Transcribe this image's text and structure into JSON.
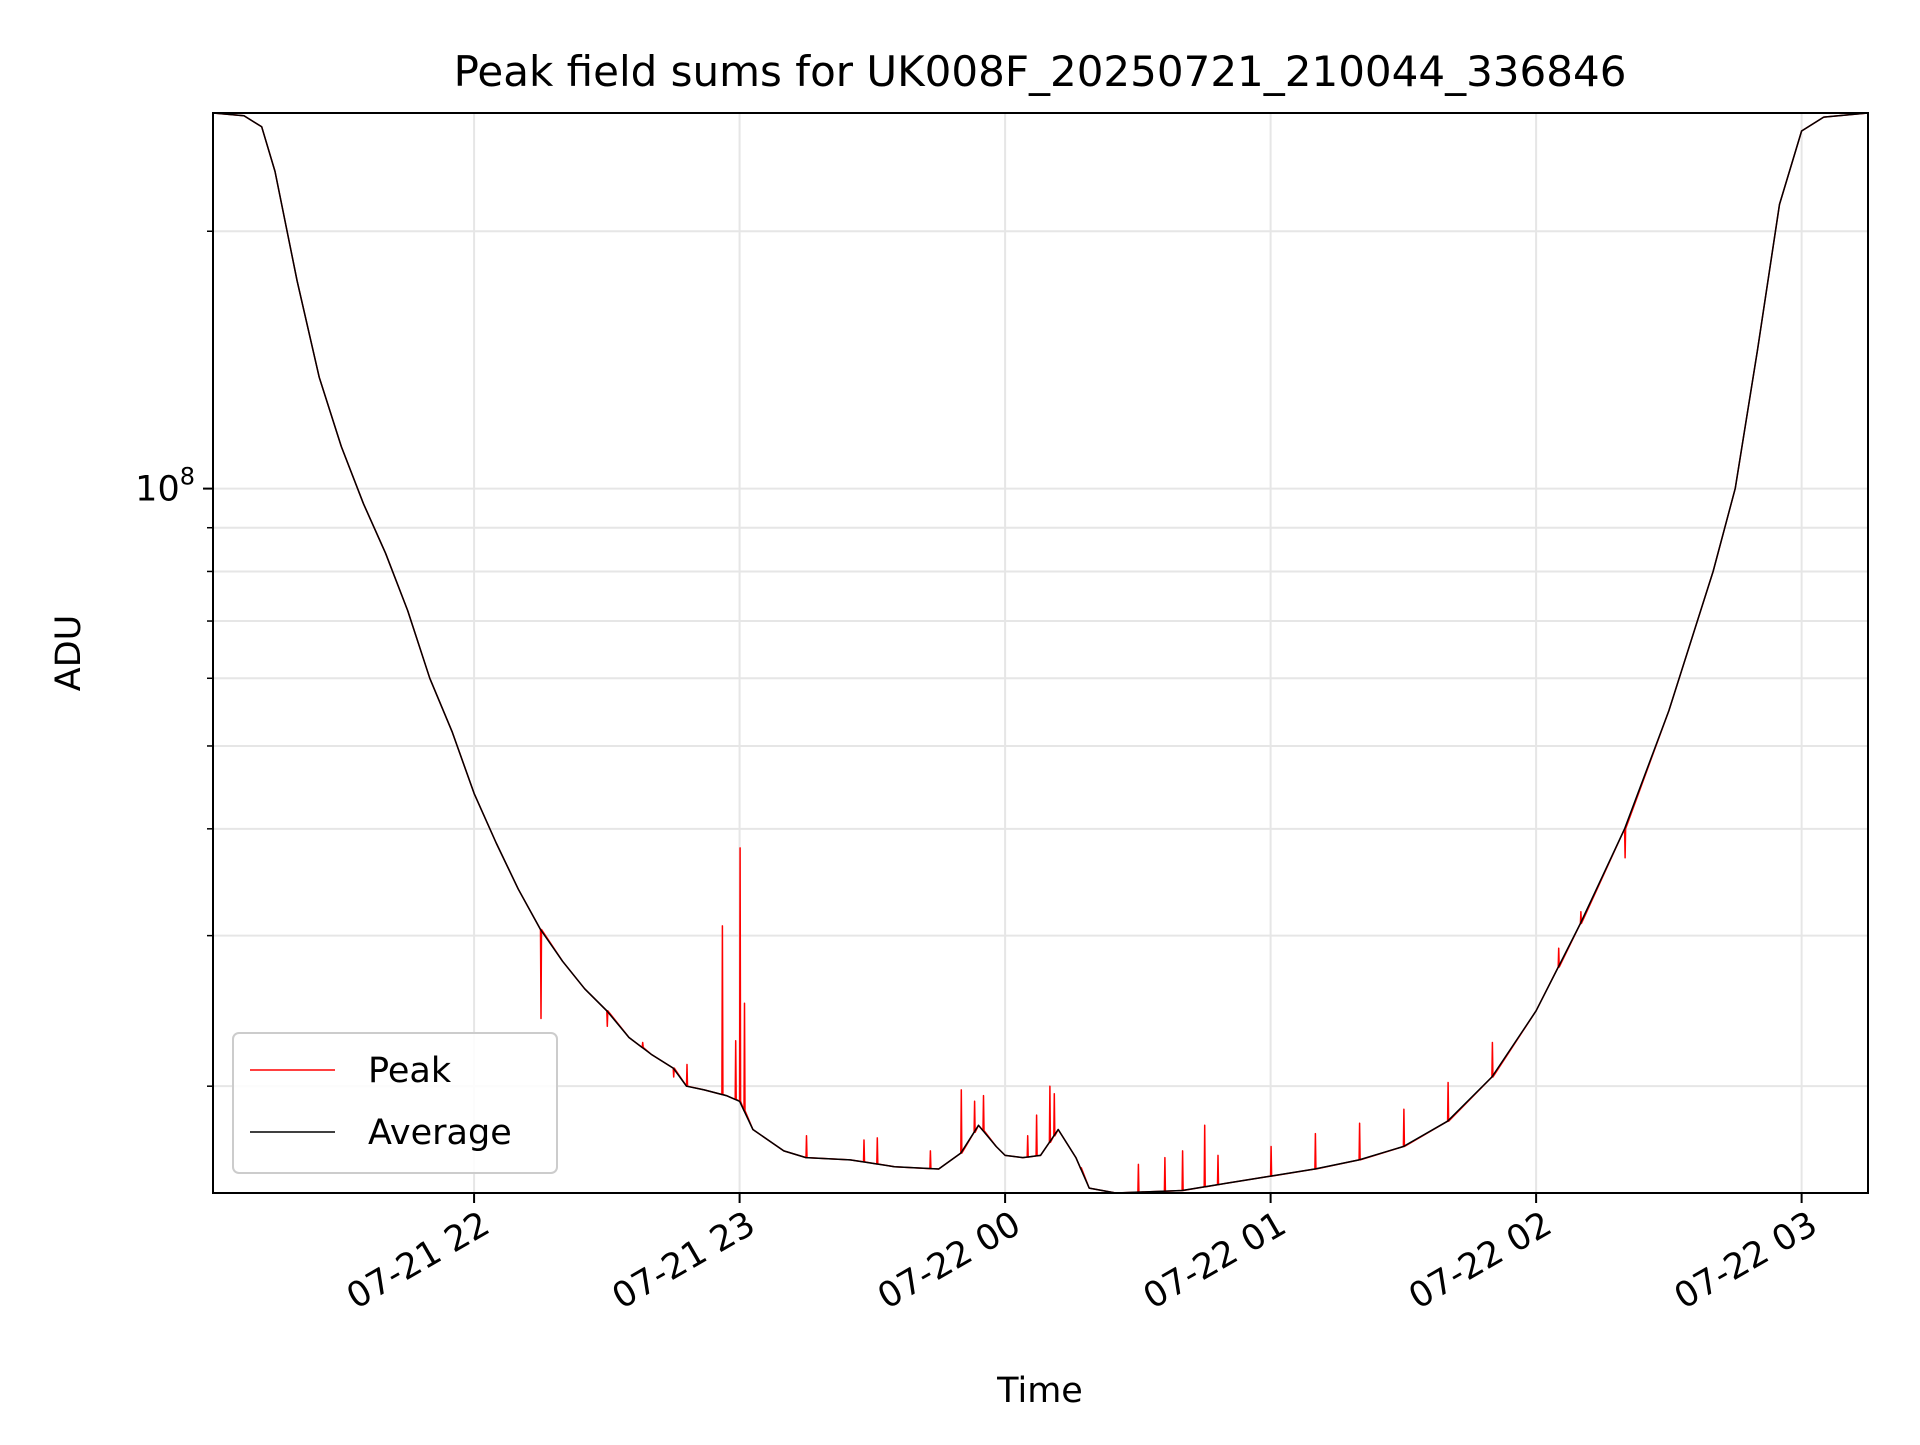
{
  "chart_data": {
    "type": "line",
    "title": "Peak field sums for UK008F_20250721_210044_336846",
    "xlabel": "Time",
    "ylabel": "ADU",
    "yscale": "log",
    "ylim": [
      15000000,
      275000000
    ],
    "xlim": [
      "2025-07-21 21:01",
      "2025-07-22 03:15"
    ],
    "x_ticks": [
      {
        "label": "07-21 22",
        "value": "2025-07-21 22:00"
      },
      {
        "label": "07-21 23",
        "value": "2025-07-21 23:00"
      },
      {
        "label": "07-22 00",
        "value": "2025-07-22 00:00"
      },
      {
        "label": "07-22 01",
        "value": "2025-07-22 01:00"
      },
      {
        "label": "07-22 02",
        "value": "2025-07-22 02:00"
      },
      {
        "label": "07-22 03",
        "value": "2025-07-22 03:00"
      }
    ],
    "y_major_tick": {
      "label_base": "10",
      "label_exp": "8",
      "value": 100000000
    },
    "y_minor_ticks": [
      20000000,
      30000000,
      40000000,
      50000000,
      60000000,
      70000000,
      80000000,
      90000000,
      200000000
    ],
    "grid": true,
    "legend": "lower-left",
    "series": [
      {
        "name": "Peak",
        "color": "#ff0000",
        "spikes": [
          [
            "2025-07-21 22:15",
            24000000
          ],
          [
            "2025-07-21 22:30",
            23500000
          ],
          [
            "2025-07-21 22:38",
            22500000
          ],
          [
            "2025-07-21 22:45",
            20500000
          ],
          [
            "2025-07-21 22:48",
            21200000
          ],
          [
            "2025-07-21 22:56",
            30800000
          ],
          [
            "2025-07-21 22:59",
            22600000
          ],
          [
            "2025-07-21 23:00",
            38000000
          ],
          [
            "2025-07-21 23:01",
            25000000
          ],
          [
            "2025-07-21 23:15",
            17500000
          ],
          [
            "2025-07-21 23:28",
            17300000
          ],
          [
            "2025-07-21 23:31",
            17400000
          ],
          [
            "2025-07-21 23:43",
            16800000
          ],
          [
            "2025-07-21 23:50",
            19800000
          ],
          [
            "2025-07-21 23:53",
            19200000
          ],
          [
            "2025-07-21 23:55",
            19500000
          ],
          [
            "2025-07-22 00:05",
            17500000
          ],
          [
            "2025-07-22 00:07",
            18500000
          ],
          [
            "2025-07-22 00:10",
            20000000
          ],
          [
            "2025-07-22 00:11",
            19600000
          ],
          [
            "2025-07-22 00:17",
            16000000
          ],
          [
            "2025-07-22 00:30",
            16200000
          ],
          [
            "2025-07-22 00:36",
            16500000
          ],
          [
            "2025-07-22 00:40",
            16800000
          ],
          [
            "2025-07-22 00:45",
            18000000
          ],
          [
            "2025-07-22 00:48",
            16600000
          ],
          [
            "2025-07-22 01:00",
            17000000
          ],
          [
            "2025-07-22 01:10",
            17600000
          ],
          [
            "2025-07-22 01:20",
            18100000
          ],
          [
            "2025-07-22 01:30",
            18800000
          ],
          [
            "2025-07-22 01:40",
            20200000
          ],
          [
            "2025-07-22 01:50",
            22500000
          ],
          [
            "2025-07-22 02:05",
            29000000
          ],
          [
            "2025-07-22 02:10",
            32000000
          ],
          [
            "2025-07-22 02:20",
            37000000
          ]
        ]
      },
      {
        "name": "Average",
        "color": "#000000",
        "points": [
          [
            "2025-07-21 21:01",
            275000000
          ],
          [
            "2025-07-21 21:08",
            273000000
          ],
          [
            "2025-07-21 21:12",
            265000000
          ],
          [
            "2025-07-21 21:15",
            235000000
          ],
          [
            "2025-07-21 21:20",
            175000000
          ],
          [
            "2025-07-21 21:25",
            135000000
          ],
          [
            "2025-07-21 21:30",
            112000000
          ],
          [
            "2025-07-21 21:35",
            96000000
          ],
          [
            "2025-07-21 21:40",
            84000000
          ],
          [
            "2025-07-21 21:45",
            72000000
          ],
          [
            "2025-07-21 21:50",
            60000000
          ],
          [
            "2025-07-21 21:55",
            52000000
          ],
          [
            "2025-07-21 22:00",
            44000000
          ],
          [
            "2025-07-21 22:05",
            38500000
          ],
          [
            "2025-07-21 22:10",
            34000000
          ],
          [
            "2025-07-21 22:15",
            30500000
          ],
          [
            "2025-07-21 22:20",
            28000000
          ],
          [
            "2025-07-21 22:25",
            26000000
          ],
          [
            "2025-07-21 22:30",
            24500000
          ],
          [
            "2025-07-21 22:35",
            22800000
          ],
          [
            "2025-07-21 22:40",
            21800000
          ],
          [
            "2025-07-21 22:45",
            21000000
          ],
          [
            "2025-07-21 22:48",
            20000000
          ],
          [
            "2025-07-21 22:52",
            19800000
          ],
          [
            "2025-07-21 22:57",
            19500000
          ],
          [
            "2025-07-21 23:00",
            19200000
          ],
          [
            "2025-07-21 23:03",
            17800000
          ],
          [
            "2025-07-21 23:10",
            16800000
          ],
          [
            "2025-07-21 23:15",
            16500000
          ],
          [
            "2025-07-21 23:25",
            16400000
          ],
          [
            "2025-07-21 23:35",
            16100000
          ],
          [
            "2025-07-21 23:45",
            16000000
          ],
          [
            "2025-07-21 23:50",
            16700000
          ],
          [
            "2025-07-21 23:54",
            18000000
          ],
          [
            "2025-07-21 23:58",
            17000000
          ],
          [
            "2025-07-22 00:00",
            16600000
          ],
          [
            "2025-07-22 00:04",
            16500000
          ],
          [
            "2025-07-22 00:08",
            16600000
          ],
          [
            "2025-07-22 00:12",
            17800000
          ],
          [
            "2025-07-22 00:16",
            16500000
          ],
          [
            "2025-07-22 00:19",
            15200000
          ],
          [
            "2025-07-22 00:25",
            15000000
          ],
          [
            "2025-07-22 00:40",
            15100000
          ],
          [
            "2025-07-22 00:50",
            15400000
          ],
          [
            "2025-07-22 01:00",
            15700000
          ],
          [
            "2025-07-22 01:10",
            16000000
          ],
          [
            "2025-07-22 01:20",
            16400000
          ],
          [
            "2025-07-22 01:30",
            17000000
          ],
          [
            "2025-07-22 01:40",
            18200000
          ],
          [
            "2025-07-22 01:50",
            20500000
          ],
          [
            "2025-07-22 02:00",
            24500000
          ],
          [
            "2025-07-22 02:10",
            31000000
          ],
          [
            "2025-07-22 02:20",
            40000000
          ],
          [
            "2025-07-22 02:30",
            55000000
          ],
          [
            "2025-07-22 02:40",
            80000000
          ],
          [
            "2025-07-22 02:45",
            100000000
          ],
          [
            "2025-07-22 02:50",
            145000000
          ],
          [
            "2025-07-22 02:55",
            215000000
          ],
          [
            "2025-07-22 03:00",
            262000000
          ],
          [
            "2025-07-22 03:05",
            272000000
          ],
          [
            "2025-07-22 03:15",
            275000000
          ]
        ]
      }
    ]
  }
}
